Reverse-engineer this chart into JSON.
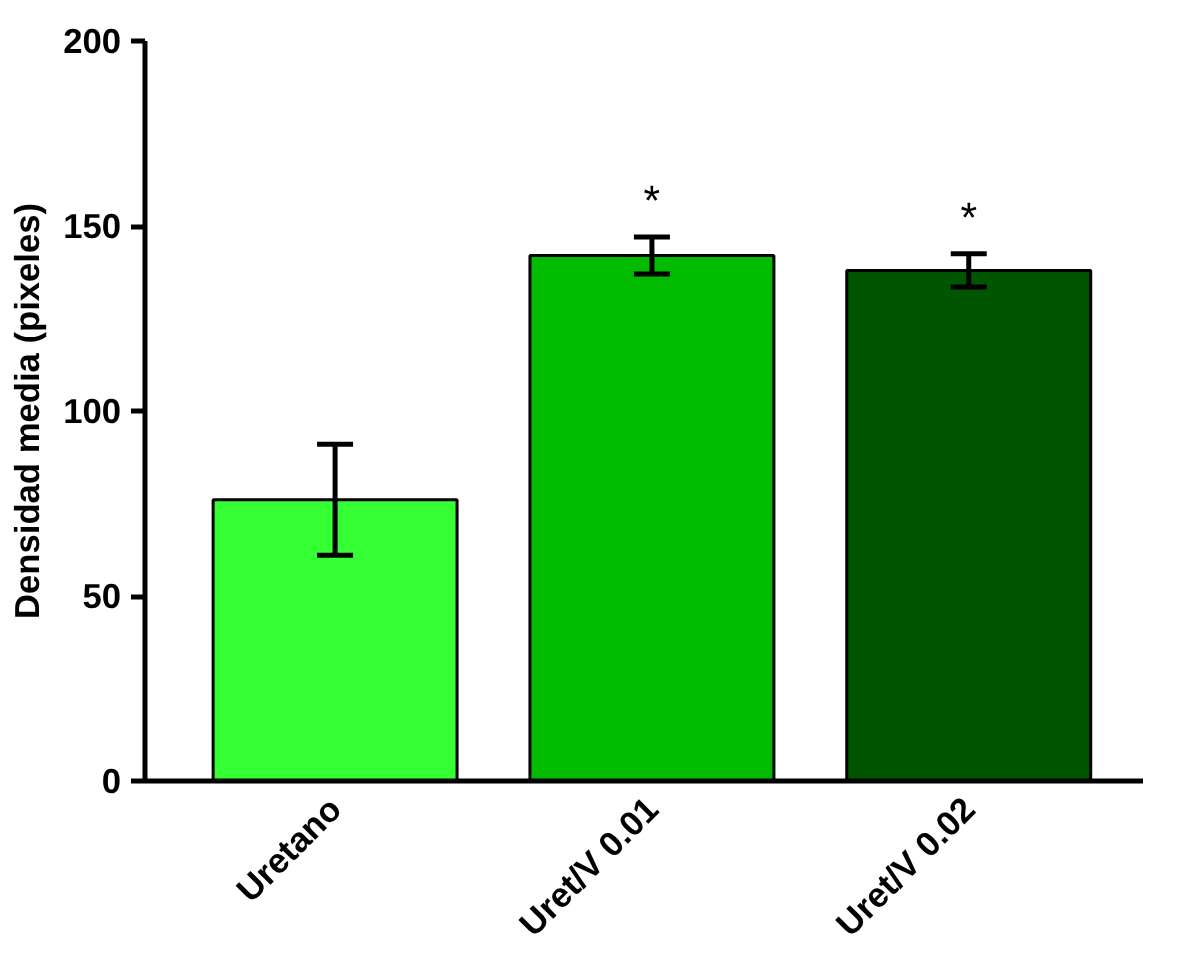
{
  "chart_data": {
    "type": "bar",
    "ylabel": "Densidad media (pixeles)",
    "categories": [
      "Uretano",
      "Uret/V 0.01",
      "Uret/V 0.02"
    ],
    "values": [
      76,
      142,
      138
    ],
    "errors": [
      15,
      5,
      4.5
    ],
    "colors": [
      "#33ff33",
      "#00bb00",
      "#005500"
    ],
    "ylim": [
      0,
      200
    ],
    "yticks": [
      0,
      50,
      100,
      150,
      200
    ],
    "grid": false,
    "annotations": [
      "*",
      "*"
    ]
  }
}
